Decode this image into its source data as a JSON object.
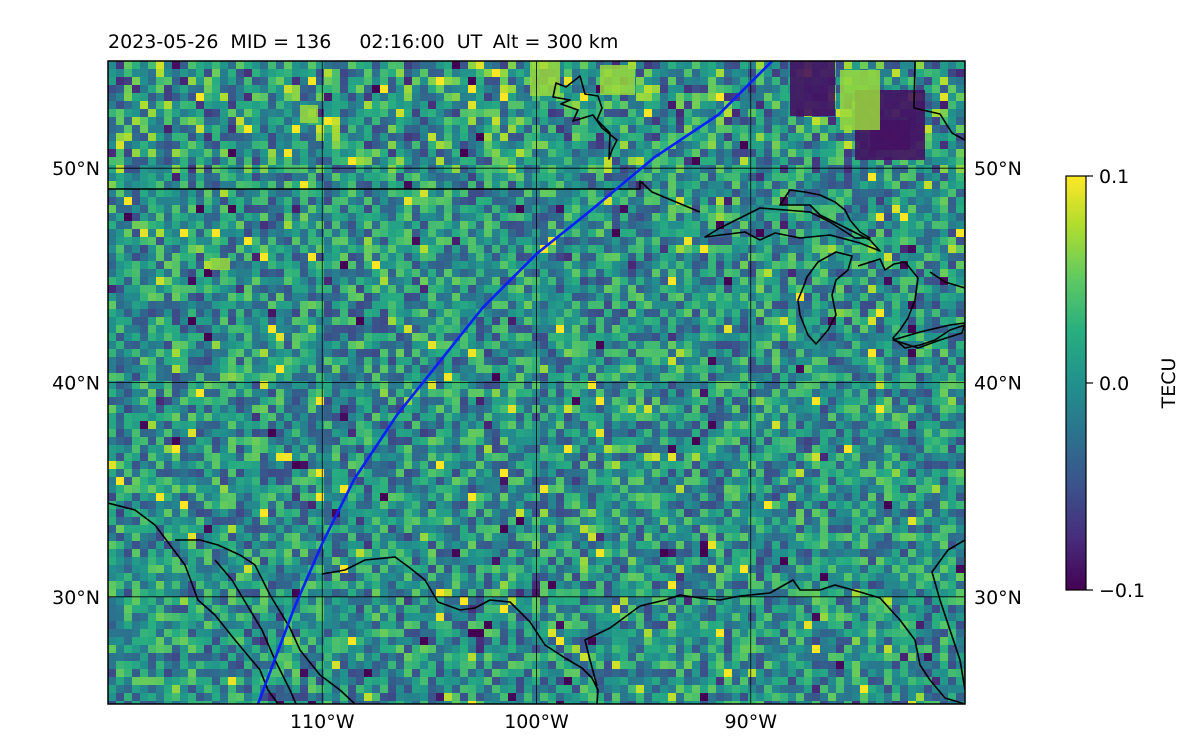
{
  "title": {
    "date": "2023-05-26",
    "mid": "MID = 136",
    "time": "02:16:00  UT",
    "alt": "Alt = 300 km"
  },
  "map": {
    "lon_range": [
      -120,
      -80
    ],
    "lat_range": [
      25,
      55
    ],
    "lon_ticks": [
      {
        "value": -110,
        "label": "110°W"
      },
      {
        "value": -100,
        "label": "100°W"
      },
      {
        "value": -90,
        "label": "90°W"
      }
    ],
    "lat_ticks": [
      {
        "value": 30,
        "label": "30°N"
      },
      {
        "value": 40,
        "label": "40°N"
      },
      {
        "value": 50,
        "label": "50°N"
      }
    ],
    "gridlines": true,
    "field": "TEC perturbation",
    "track_color": "#0a20ff",
    "track": [
      [
        -113,
        25
      ],
      [
        -111.3,
        29.5
      ],
      [
        -110,
        32.5
      ],
      [
        -108.5,
        35.5
      ],
      [
        -106.5,
        38.5
      ],
      [
        -104.5,
        41
      ],
      [
        -102.5,
        43.5
      ],
      [
        -100,
        46
      ],
      [
        -97.5,
        48
      ],
      [
        -94.5,
        50.5
      ],
      [
        -91.5,
        52.5
      ],
      [
        -89,
        55
      ]
    ]
  },
  "colorbar": {
    "label": "TECU",
    "colormap": "viridis",
    "range": [
      -0.1,
      0.1
    ],
    "ticks": [
      {
        "value": 0.1,
        "label": "0.1"
      },
      {
        "value": 0.0,
        "label": "0.0"
      },
      {
        "value": -0.1,
        "label": "−0.1"
      }
    ]
  }
}
